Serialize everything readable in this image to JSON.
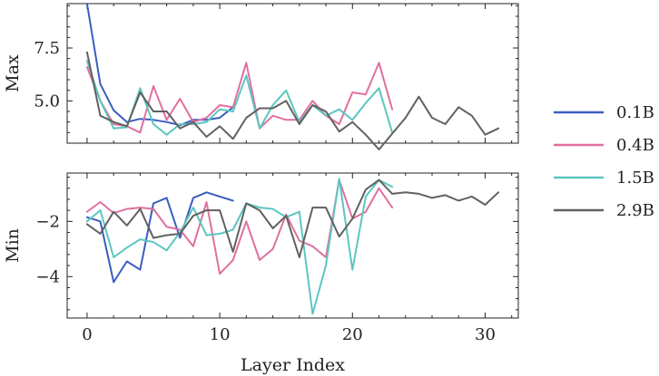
{
  "chart_data": [
    {
      "type": "line",
      "ylabel": "Max",
      "xlim": [
        -1.5,
        32.5
      ],
      "ylim": [
        3.0,
        9.6
      ],
      "yticks": [
        5.0,
        7.5
      ],
      "ytick_labels": [
        "5.0",
        "7.5"
      ],
      "series": [
        {
          "name": "0.1B",
          "color": "#3a5dbf",
          "x": [
            0,
            1,
            2,
            3,
            4,
            5,
            6,
            7,
            8,
            9,
            10,
            11
          ],
          "y": [
            9.6,
            5.8,
            4.55,
            4.0,
            4.15,
            4.1,
            4.0,
            3.85,
            4.1,
            4.1,
            4.2,
            4.7
          ]
        },
        {
          "name": "0.4B",
          "color": "#e06fa0",
          "x": [
            0,
            1,
            2,
            3,
            4,
            5,
            6,
            7,
            8,
            9,
            10,
            11,
            12,
            13,
            14,
            15,
            16,
            17,
            18,
            19,
            20,
            21,
            22,
            23
          ],
          "y": [
            6.6,
            5.0,
            3.9,
            3.8,
            3.5,
            5.7,
            4.1,
            5.1,
            4.0,
            4.2,
            4.8,
            4.7,
            6.8,
            3.7,
            4.3,
            4.1,
            4.1,
            5.0,
            4.3,
            3.9,
            5.4,
            5.3,
            6.8,
            4.6
          ]
        },
        {
          "name": "1.5B",
          "color": "#5bc6c0",
          "x": [
            0,
            1,
            2,
            3,
            4,
            5,
            6,
            7,
            8,
            9,
            10,
            11,
            12,
            13,
            14,
            15,
            16,
            17,
            18,
            19,
            20,
            21,
            22,
            23
          ],
          "y": [
            6.9,
            5.0,
            3.7,
            3.75,
            5.6,
            3.9,
            3.4,
            3.9,
            3.9,
            4.0,
            4.6,
            4.5,
            6.2,
            3.7,
            4.8,
            5.5,
            4.0,
            4.8,
            4.3,
            4.6,
            4.1,
            4.9,
            5.6,
            3.5
          ]
        },
        {
          "name": "2.9B",
          "color": "#616161",
          "x": [
            0,
            1,
            2,
            3,
            4,
            5,
            6,
            7,
            8,
            9,
            10,
            11,
            12,
            13,
            14,
            15,
            16,
            17,
            18,
            19,
            20,
            21,
            22,
            23,
            24,
            25,
            26,
            27,
            28,
            29,
            30,
            31
          ],
          "y": [
            7.3,
            4.3,
            4.0,
            3.8,
            5.4,
            4.5,
            4.5,
            3.7,
            4.0,
            3.3,
            3.8,
            3.2,
            4.2,
            4.65,
            4.65,
            5.0,
            3.9,
            4.8,
            4.5,
            3.55,
            4.0,
            3.4,
            2.7,
            3.45,
            4.2,
            5.2,
            4.2,
            3.9,
            4.7,
            4.3,
            3.4,
            3.7
          ]
        }
      ]
    },
    {
      "type": "line",
      "xlabel": "Layer Index",
      "ylabel": "Min",
      "xlim": [
        -1.5,
        32.5
      ],
      "ylim": [
        -5.5,
        -0.25
      ],
      "xticks": [
        0,
        10,
        20,
        30
      ],
      "xtick_labels": [
        "0",
        "10",
        "20",
        "30"
      ],
      "yticks": [
        -4,
        -2
      ],
      "ytick_labels": [
        "−4",
        "−2"
      ],
      "series": [
        {
          "name": "0.1B",
          "color": "#3a5dbf",
          "x": [
            0,
            1,
            2,
            3,
            4,
            5,
            6,
            7,
            8,
            9,
            10,
            11
          ],
          "y": [
            -1.85,
            -2.0,
            -4.2,
            -3.45,
            -3.75,
            -1.35,
            -1.15,
            -2.6,
            -1.15,
            -0.95,
            -1.1,
            -1.25
          ]
        },
        {
          "name": "0.4B",
          "color": "#e06fa0",
          "x": [
            0,
            1,
            2,
            3,
            4,
            5,
            6,
            7,
            8,
            9,
            10,
            11,
            12,
            13,
            14,
            15,
            16,
            17,
            18,
            19,
            20,
            21,
            22,
            23
          ],
          "y": [
            -1.65,
            -1.3,
            -1.7,
            -1.55,
            -1.5,
            -1.55,
            -2.2,
            -2.3,
            -2.9,
            -1.3,
            -3.9,
            -3.4,
            -2.0,
            -3.4,
            -3.0,
            -1.75,
            -2.7,
            -2.9,
            -3.3,
            -0.5,
            -1.9,
            -1.65,
            -0.8,
            -1.5
          ]
        },
        {
          "name": "1.5B",
          "color": "#5bc6c0",
          "x": [
            0,
            1,
            2,
            3,
            4,
            5,
            6,
            7,
            8,
            9,
            10,
            11,
            12,
            13,
            14,
            15,
            16,
            17,
            18,
            19,
            20,
            21,
            22,
            23
          ],
          "y": [
            -2.0,
            -1.6,
            -3.3,
            -2.95,
            -2.65,
            -2.75,
            -3.05,
            -2.4,
            -1.5,
            -2.5,
            -2.45,
            -2.3,
            -1.35,
            -1.5,
            -1.55,
            -1.85,
            -1.65,
            -5.35,
            -3.6,
            -0.45,
            -3.75,
            -1.1,
            -0.5,
            -0.75
          ]
        },
        {
          "name": "2.9B",
          "color": "#616161",
          "x": [
            0,
            1,
            2,
            3,
            4,
            5,
            6,
            7,
            8,
            9,
            10,
            11,
            12,
            13,
            14,
            15,
            16,
            17,
            18,
            19,
            20,
            21,
            22,
            23,
            24,
            25,
            26,
            27,
            28,
            29,
            30,
            31
          ],
          "y": [
            -2.1,
            -2.45,
            -1.65,
            -2.15,
            -1.55,
            -2.6,
            -2.5,
            -2.45,
            -1.8,
            -1.6,
            -1.6,
            -3.1,
            -1.35,
            -1.6,
            -2.25,
            -1.8,
            -3.3,
            -1.5,
            -1.5,
            -2.55,
            -1.9,
            -0.85,
            -0.5,
            -1.0,
            -0.95,
            -1.0,
            -1.15,
            -1.05,
            -1.25,
            -1.1,
            -1.4,
            -0.95
          ]
        }
      ]
    }
  ],
  "legend": {
    "placement": "right",
    "entries": [
      {
        "label": "0.1B",
        "color": "#3a5dbf"
      },
      {
        "label": "0.4B",
        "color": "#e06fa0"
      },
      {
        "label": "1.5B",
        "color": "#5bc6c0"
      },
      {
        "label": "2.9B",
        "color": "#616161"
      }
    ]
  }
}
